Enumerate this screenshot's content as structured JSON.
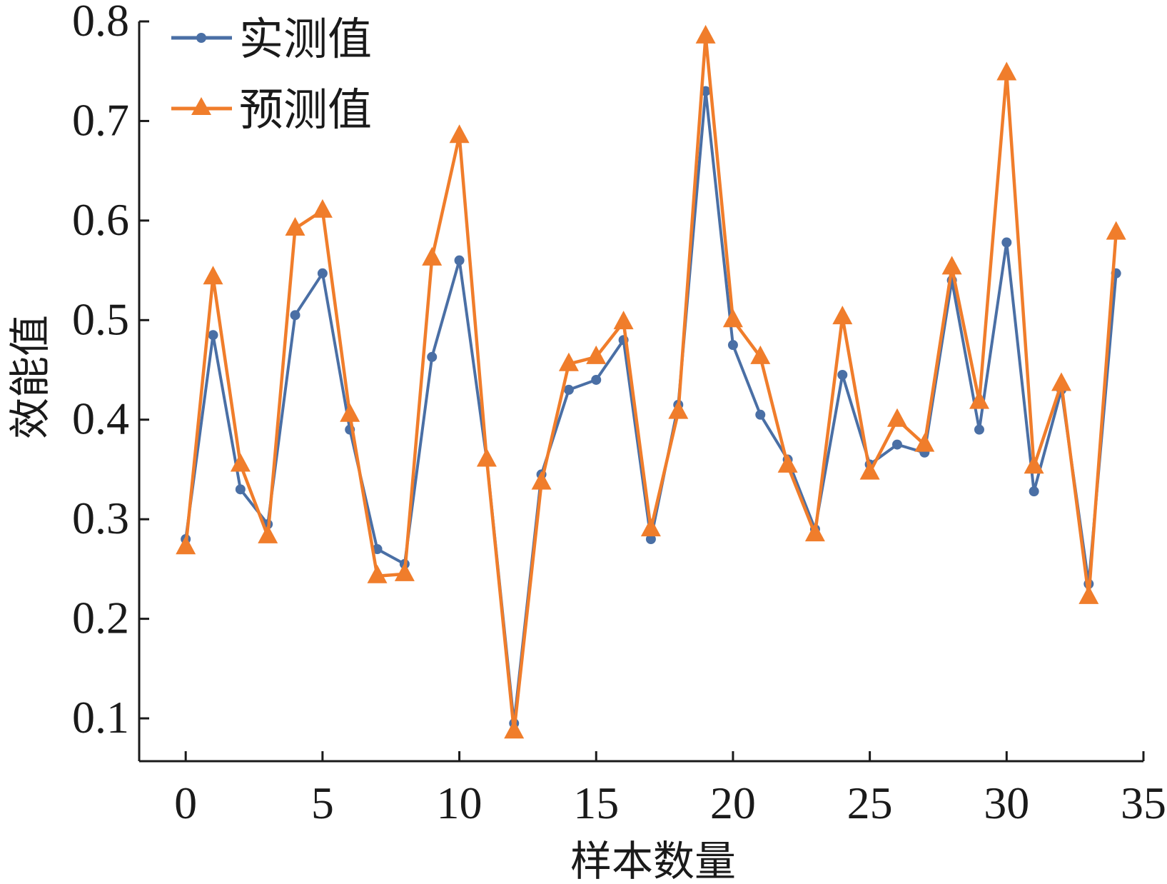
{
  "chart_data": {
    "type": "line",
    "xlabel": "样本数量",
    "ylabel": "效能值",
    "xlim": [
      -1.7,
      35
    ],
    "ylim": [
      0.057,
      0.8
    ],
    "xticks": [
      0,
      5,
      10,
      15,
      20,
      25,
      30,
      35
    ],
    "xtick_labels": [
      "0",
      "5",
      "10",
      "15",
      "20",
      "25",
      "30",
      "35"
    ],
    "yticks": [
      0.1,
      0.2,
      0.3,
      0.4,
      0.5,
      0.6,
      0.7,
      0.8
    ],
    "ytick_labels": [
      "0.1",
      "0.2",
      "0.3",
      "0.4",
      "0.5",
      "0.6",
      "0.7",
      "0.8"
    ],
    "grid": false,
    "legend_position": "top-left",
    "x": [
      0,
      1,
      2,
      3,
      4,
      5,
      6,
      7,
      8,
      9,
      10,
      11,
      12,
      13,
      14,
      15,
      16,
      17,
      18,
      19,
      20,
      21,
      22,
      23,
      24,
      25,
      26,
      27,
      28,
      29,
      30,
      31,
      32,
      33,
      34
    ],
    "series": [
      {
        "name": "实测值",
        "color": "#4a6fa5",
        "marker": "circle",
        "values": [
          0.28,
          0.485,
          0.33,
          0.295,
          0.505,
          0.547,
          0.39,
          0.27,
          0.255,
          0.463,
          0.56,
          0.36,
          0.095,
          0.345,
          0.43,
          0.44,
          0.48,
          0.28,
          0.415,
          0.73,
          0.475,
          0.405,
          0.36,
          0.29,
          0.445,
          0.355,
          0.375,
          0.367,
          0.54,
          0.39,
          0.578,
          0.328,
          0.43,
          0.235,
          0.547
        ]
      },
      {
        "name": "预测值",
        "color": "#f07d2b",
        "marker": "triangle",
        "values": [
          0.272,
          0.543,
          0.355,
          0.283,
          0.592,
          0.61,
          0.405,
          0.243,
          0.245,
          0.562,
          0.685,
          0.36,
          0.087,
          0.337,
          0.456,
          0.463,
          0.498,
          0.29,
          0.408,
          0.785,
          0.5,
          0.463,
          0.354,
          0.285,
          0.503,
          0.347,
          0.4,
          0.375,
          0.553,
          0.418,
          0.748,
          0.353,
          0.436,
          0.222,
          0.588
        ]
      }
    ]
  }
}
